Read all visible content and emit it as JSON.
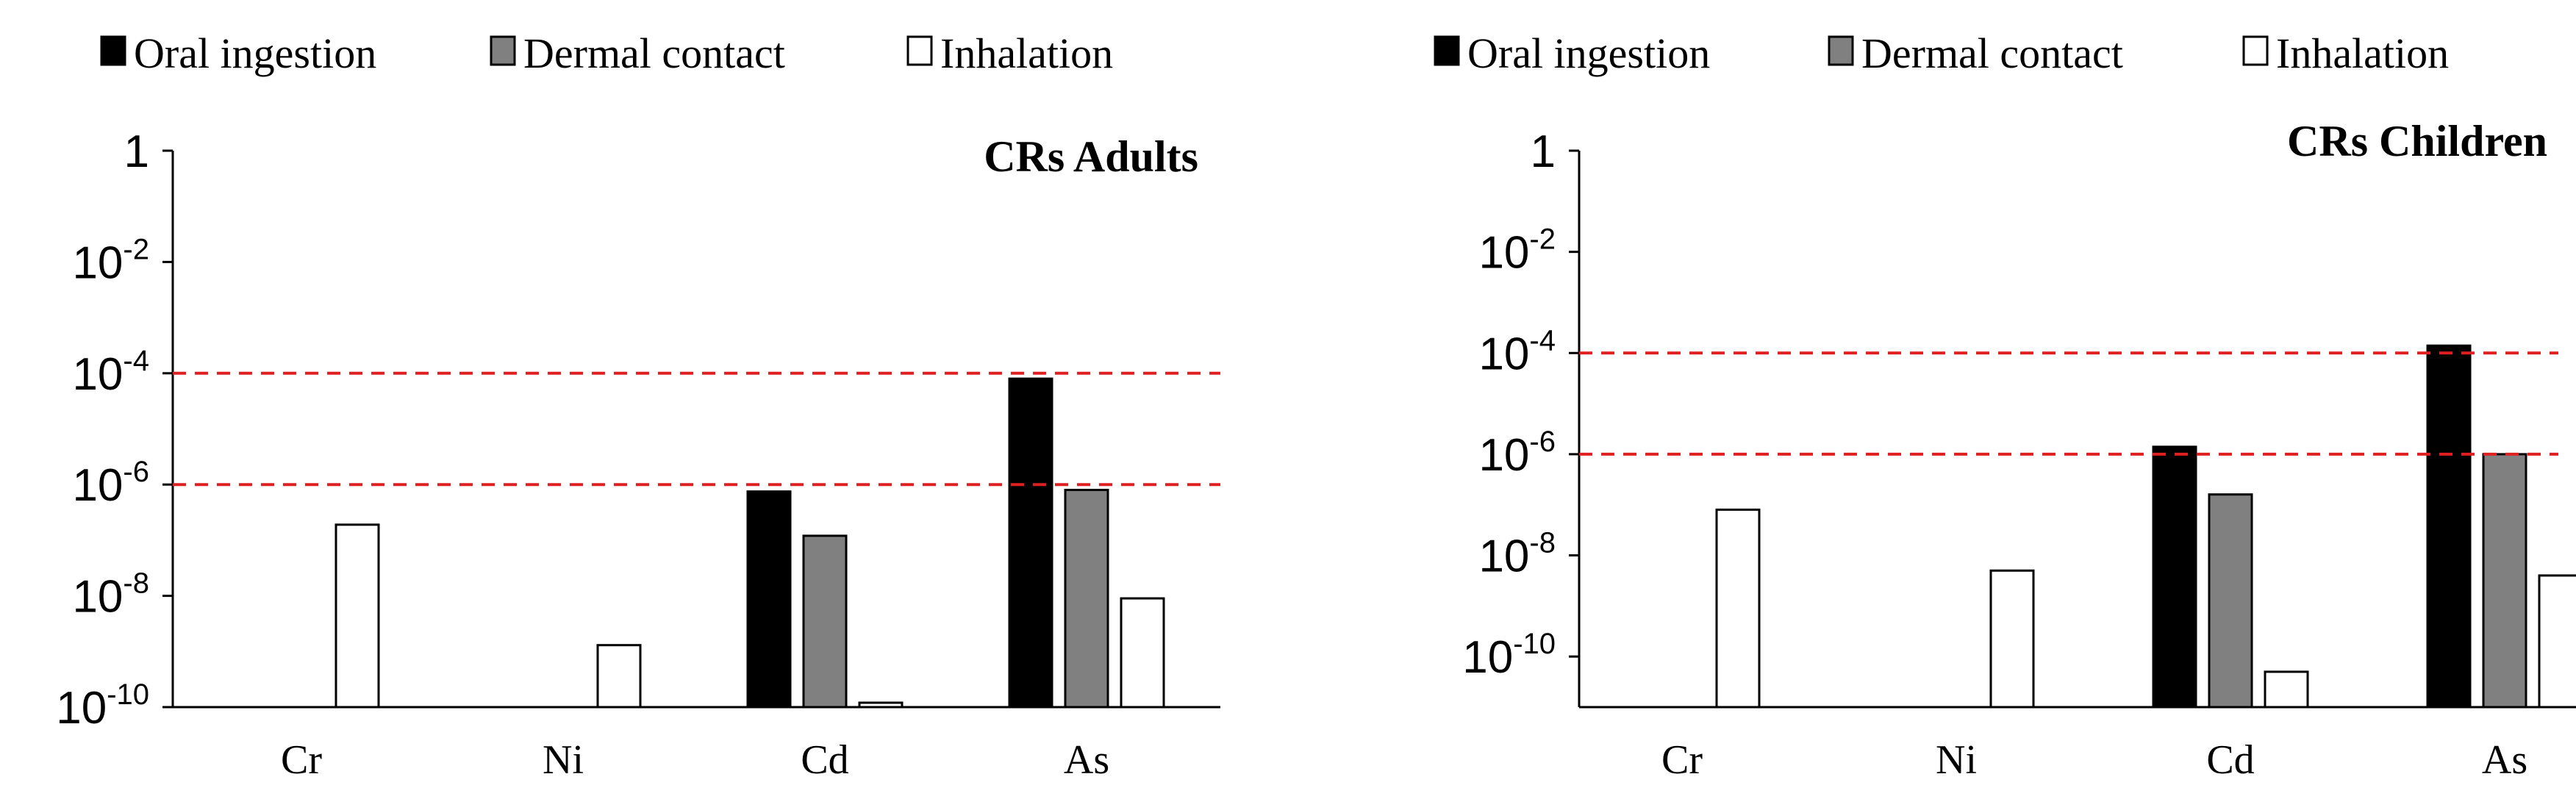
{
  "colors": {
    "oral": "#000000",
    "dermal": "#808080",
    "inhalation": "#ffffff",
    "threshold": "#e02020"
  },
  "legend": {
    "oral": "Oral ingestion",
    "dermal": "Dermal contact",
    "inhalation": "Inhalation"
  },
  "chart_data": [
    {
      "type": "bar",
      "title": "CRs Adults",
      "yscale": "log",
      "ylim": [
        1e-10,
        1
      ],
      "y_ticks": [
        {
          "base": "1",
          "exp": ""
        },
        {
          "base": "10",
          "exp": "-2"
        },
        {
          "base": "10",
          "exp": "-4"
        },
        {
          "base": "10",
          "exp": "-6"
        },
        {
          "base": "10",
          "exp": "-8"
        },
        {
          "base": "10",
          "exp": "-10"
        }
      ],
      "categories": [
        "Cr",
        "Ni",
        "Cd",
        "As"
      ],
      "series": [
        {
          "name": "Oral ingestion",
          "values": [
            null,
            null,
            7.5e-07,
            8e-05
          ]
        },
        {
          "name": "Dermal contact",
          "values": [
            null,
            null,
            1.2e-07,
            8e-07
          ]
        },
        {
          "name": "Inhalation",
          "values": [
            1.9e-07,
            1.3e-09,
            1.2e-10,
            9e-09
          ]
        }
      ],
      "thresholds": [
        0.0001,
        1e-06
      ]
    },
    {
      "type": "bar",
      "title": "CRs Children",
      "yscale": "log",
      "ylim": [
        1e-11,
        1
      ],
      "y_ticks": [
        {
          "base": "1",
          "exp": ""
        },
        {
          "base": "10",
          "exp": "-2"
        },
        {
          "base": "10",
          "exp": "-4"
        },
        {
          "base": "10",
          "exp": "-6"
        },
        {
          "base": "10",
          "exp": "-8"
        },
        {
          "base": "10",
          "exp": "-10"
        }
      ],
      "categories": [
        "Cr",
        "Ni",
        "Cd",
        "As"
      ],
      "series": [
        {
          "name": "Oral ingestion",
          "values": [
            null,
            null,
            1.4e-06,
            0.00014
          ]
        },
        {
          "name": "Dermal contact",
          "values": [
            null,
            null,
            1.6e-07,
            1e-06
          ]
        },
        {
          "name": "Inhalation",
          "values": [
            8e-08,
            5e-09,
            5e-11,
            4e-09
          ]
        }
      ],
      "thresholds": [
        0.0001,
        1e-06
      ]
    }
  ]
}
